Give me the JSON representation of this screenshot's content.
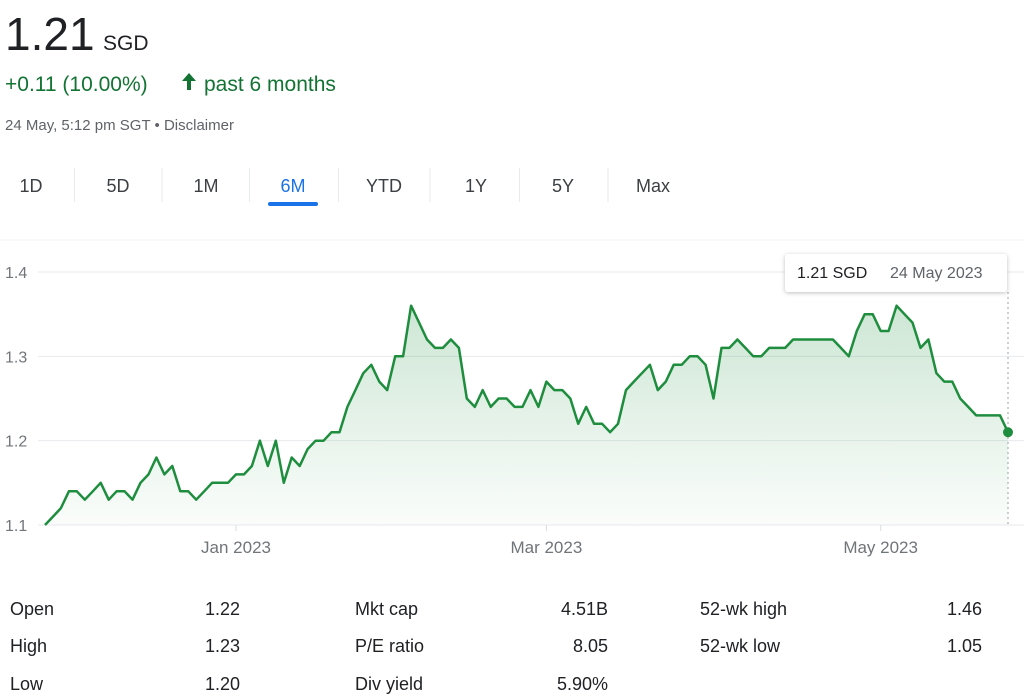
{
  "header": {
    "price": "1.21",
    "currency": "SGD",
    "change": "+0.11 (10.00%)",
    "period": "past 6 months",
    "timestamp": "24 May, 5:12 pm SGT",
    "separator": "•",
    "disclaimer": "Disclaimer"
  },
  "tabs": {
    "items": [
      "1D",
      "5D",
      "1M",
      "6M",
      "YTD",
      "1Y",
      "5Y",
      "Max"
    ],
    "selected": "6M"
  },
  "chart_data": {
    "type": "line",
    "color": "#1e8e3e",
    "values": [
      1.1,
      1.11,
      1.12,
      1.14,
      1.14,
      1.13,
      1.14,
      1.15,
      1.13,
      1.14,
      1.14,
      1.13,
      1.15,
      1.16,
      1.18,
      1.16,
      1.17,
      1.14,
      1.14,
      1.13,
      1.14,
      1.15,
      1.15,
      1.15,
      1.16,
      1.16,
      1.17,
      1.2,
      1.17,
      1.2,
      1.15,
      1.18,
      1.17,
      1.19,
      1.2,
      1.2,
      1.21,
      1.21,
      1.24,
      1.26,
      1.28,
      1.29,
      1.27,
      1.26,
      1.3,
      1.3,
      1.36,
      1.34,
      1.32,
      1.31,
      1.31,
      1.32,
      1.31,
      1.25,
      1.24,
      1.26,
      1.24,
      1.25,
      1.25,
      1.24,
      1.24,
      1.26,
      1.24,
      1.27,
      1.26,
      1.26,
      1.25,
      1.22,
      1.24,
      1.22,
      1.22,
      1.21,
      1.22,
      1.26,
      1.27,
      1.28,
      1.29,
      1.26,
      1.27,
      1.29,
      1.29,
      1.3,
      1.3,
      1.29,
      1.25,
      1.31,
      1.31,
      1.32,
      1.31,
      1.3,
      1.3,
      1.31,
      1.31,
      1.31,
      1.32,
      1.32,
      1.32,
      1.32,
      1.32,
      1.32,
      1.31,
      1.3,
      1.33,
      1.35,
      1.35,
      1.33,
      1.33,
      1.36,
      1.35,
      1.34,
      1.31,
      1.32,
      1.28,
      1.27,
      1.27,
      1.25,
      1.24,
      1.23,
      1.23,
      1.23,
      1.23,
      1.21
    ],
    "xlim": [
      0,
      121
    ],
    "xticks": [
      {
        "value": 24,
        "label": "Jan 2023"
      },
      {
        "value": 63,
        "label": "Mar 2023"
      },
      {
        "value": 105,
        "label": "May 2023"
      }
    ],
    "ylim": [
      1.1,
      1.4
    ],
    "yticks": [
      1.1,
      1.2,
      1.3,
      1.4
    ],
    "grid": true,
    "tooltip": {
      "value": "1.21 SGD",
      "date": "24 May 2023"
    }
  },
  "stats": [
    [
      {
        "label": "Open",
        "value": "1.22"
      },
      {
        "label": "High",
        "value": "1.23"
      },
      {
        "label": "Low",
        "value": "1.20"
      }
    ],
    [
      {
        "label": "Mkt cap",
        "value": "4.51B"
      },
      {
        "label": "P/E ratio",
        "value": "8.05"
      },
      {
        "label": "Div yield",
        "value": "5.90%"
      }
    ],
    [
      {
        "label": "52-wk high",
        "value": "1.46"
      },
      {
        "label": "52-wk low",
        "value": "1.05"
      }
    ]
  ]
}
